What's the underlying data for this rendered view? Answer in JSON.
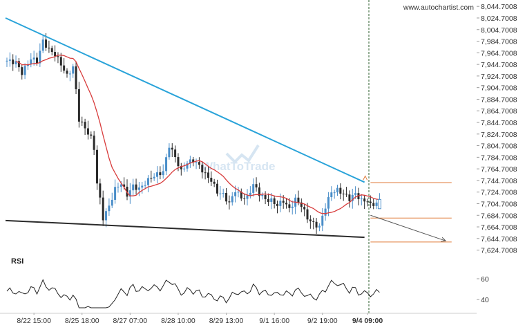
{
  "chart_data": {
    "type": "candlestick",
    "watermark": "www.autochartist.com",
    "logo_text": "WhatToTrade",
    "price_axis": {
      "min": 7614.7008,
      "max": 8049.7008,
      "ticks": [
        "8,044.7008",
        "8,024.7008",
        "8,004.7008",
        "7,984.7008",
        "7,964.7008",
        "7,944.7008",
        "7,924.7008",
        "7,904.7008",
        "7,884.7008",
        "7,864.7008",
        "7,844.7008",
        "7,824.7008",
        "7,804.7008",
        "7,784.7008",
        "7,764.7008",
        "7,744.7008",
        "7,724.7008",
        "7,704.7008",
        "7,684.7008",
        "7,664.7008",
        "7,644.7008",
        "7,624.7008"
      ]
    },
    "time_axis": {
      "labels": [
        {
          "label": "8/22 15:00",
          "bar": 9
        },
        {
          "label": "8/25 18:00",
          "bar": 25
        },
        {
          "label": "8/27 07:00",
          "bar": 41
        },
        {
          "label": "8/28 10:00",
          "bar": 57
        },
        {
          "label": "8/29 13:00",
          "bar": 73
        },
        {
          "label": "9/1 16:00",
          "bar": 89
        },
        {
          "label": "9/2 19:00",
          "bar": 105
        },
        {
          "label": "9/4 09:00",
          "bar": 120
        }
      ],
      "current_bar": 120
    },
    "rsi": {
      "label": "RSI",
      "ticks": [
        60,
        40
      ],
      "range": [
        30,
        72
      ]
    },
    "up_color": "#4a8ec9",
    "down_color": "#2b2b2b",
    "ma_color": "#d83b3b",
    "trendline_color": "#29a3d9",
    "support_color": "#2b2b2b",
    "level_color": "#e07b39",
    "pattern": {
      "resistance": {
        "from_bar": 0,
        "from_price": 8024.7,
        "to_bar": 119,
        "to_price": 7741.7
      },
      "support": {
        "from_bar": 0,
        "from_price": 7675.7,
        "to_bar": 119,
        "to_price": 7646.7
      },
      "forecast_from": {
        "bar": 121,
        "price": 7684.7
      },
      "forecast_to": {
        "bar": 146,
        "price": 7640.7
      },
      "levels": [
        {
          "price": 7741.0,
          "from_bar": 121,
          "to_bar": 148
        },
        {
          "price": 7680.0,
          "from_bar": 121,
          "to_bar": 148
        },
        {
          "price": 7638.7,
          "from_bar": 121,
          "to_bar": 148
        }
      ]
    }
  }
}
